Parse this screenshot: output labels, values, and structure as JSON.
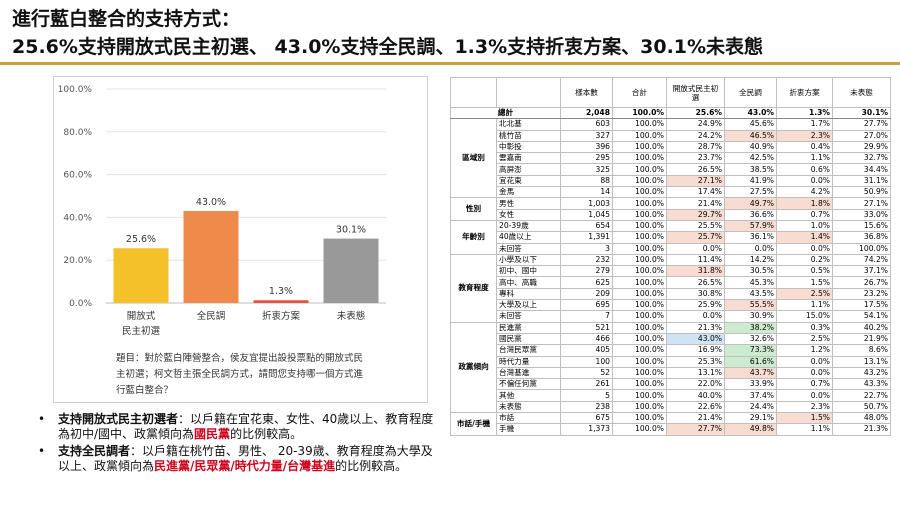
{
  "header": {
    "line1": "進行藍白整合的支持方式：",
    "line2": "25.6%支持開放式民主初選、 43.0%支持全民調、1.3%支持折衷方案、30.1%未表態"
  },
  "chart_data": {
    "type": "bar",
    "categories": [
      "開放式民主初選",
      "全民調",
      "折衷方案",
      "未表態"
    ],
    "category_lines": [
      [
        "開放式",
        "民主初選"
      ],
      [
        "全民調"
      ],
      [
        "折衷方案"
      ],
      [
        "未表態"
      ]
    ],
    "values": [
      25.6,
      43.0,
      1.3,
      30.1
    ],
    "value_labels": [
      "25.6%",
      "43.0%",
      "1.3%",
      "30.1%"
    ],
    "colors": [
      "#f5c12b",
      "#ef8a4a",
      "#e45548",
      "#999999"
    ],
    "ylim": [
      0,
      100
    ],
    "yticks": [
      0,
      20,
      40,
      60,
      80,
      100
    ],
    "ytick_labels": [
      "0.0%",
      "20.0%",
      "40.0%",
      "60.0%",
      "80.0%",
      "100.0%"
    ],
    "grid": true,
    "title": "",
    "xlabel": "",
    "ylabel": ""
  },
  "question": {
    "text": "題目：對於藍白陣營整合，侯友宜提出設投票點的開放式民主初選；柯文哲主張全民調方式，請問您支持哪一個方式進行藍白整合？"
  },
  "notes": [
    {
      "lead": "支持開放式民主初選者",
      "text": "：以戶籍在宜花東、女性、40歲以上、教育程度為初中/國中、政黨傾向為",
      "highlight": "國民黨",
      "tail": "的比例較高。"
    },
    {
      "lead": "支持全民調者",
      "text": "：以戶籍在桃竹苗、男性、 20-39歲、教育程度為大學及以上、政黨傾向為",
      "highlight": "民進黨/民眾黨/時代力量/台灣基進",
      "tail": "的比例較高。"
    }
  ],
  "table": {
    "headers": [
      "樣本數",
      "合計",
      "開放式民主初選",
      "全民調",
      "折衷方案",
      "未表態"
    ],
    "total": {
      "label": "總計",
      "values": [
        "2,048",
        "100.0%",
        "25.6%",
        "43.0%",
        "1.3%",
        "30.1%"
      ]
    },
    "groups": [
      {
        "name": "區域別",
        "rows": [
          {
            "label": "北北基",
            "values": [
              "603",
              "100.0%",
              "24.9%",
              "45.6%",
              "1.7%",
              "27.7%"
            ],
            "hl": [
              null,
              null,
              null,
              null,
              null,
              null
            ]
          },
          {
            "label": "桃竹苗",
            "values": [
              "327",
              "100.0%",
              "24.2%",
              "46.5%",
              "2.3%",
              "27.0%"
            ],
            "hl": [
              null,
              null,
              null,
              "red",
              "red",
              null
            ]
          },
          {
            "label": "中彰投",
            "values": [
              "396",
              "100.0%",
              "28.7%",
              "40.9%",
              "0.4%",
              "29.9%"
            ],
            "hl": [
              null,
              null,
              null,
              null,
              null,
              null
            ]
          },
          {
            "label": "雲嘉南",
            "values": [
              "295",
              "100.0%",
              "23.7%",
              "42.5%",
              "1.1%",
              "32.7%"
            ],
            "hl": [
              null,
              null,
              null,
              null,
              null,
              null
            ]
          },
          {
            "label": "高屏澎",
            "values": [
              "325",
              "100.0%",
              "26.5%",
              "38.5%",
              "0.6%",
              "34.4%"
            ],
            "hl": [
              null,
              null,
              null,
              null,
              null,
              null
            ]
          },
          {
            "label": "宜花東",
            "values": [
              "88",
              "100.0%",
              "27.1%",
              "41.9%",
              "0.0%",
              "31.1%"
            ],
            "hl": [
              null,
              null,
              "red",
              null,
              null,
              null
            ]
          },
          {
            "label": "金馬",
            "values": [
              "14",
              "100.0%",
              "17.4%",
              "27.5%",
              "4.2%",
              "50.9%"
            ],
            "hl": [
              null,
              null,
              null,
              null,
              null,
              null
            ]
          }
        ]
      },
      {
        "name": "性別",
        "rows": [
          {
            "label": "男性",
            "values": [
              "1,003",
              "100.0%",
              "21.4%",
              "49.7%",
              "1.8%",
              "27.1%"
            ],
            "hl": [
              null,
              null,
              null,
              "red",
              "red",
              null
            ]
          },
          {
            "label": "女性",
            "values": [
              "1,045",
              "100.0%",
              "29.7%",
              "36.6%",
              "0.7%",
              "33.0%"
            ],
            "hl": [
              null,
              null,
              "red",
              null,
              null,
              null
            ]
          }
        ]
      },
      {
        "name": "年齡別",
        "rows": [
          {
            "label": "20-39歲",
            "values": [
              "654",
              "100.0%",
              "25.5%",
              "57.9%",
              "1.0%",
              "15.6%"
            ],
            "hl": [
              null,
              null,
              null,
              "red",
              null,
              null
            ]
          },
          {
            "label": "40歲以上",
            "values": [
              "1,391",
              "100.0%",
              "25.7%",
              "36.1%",
              "1.4%",
              "36.8%"
            ],
            "hl": [
              null,
              null,
              "red",
              null,
              "red",
              null
            ]
          },
          {
            "label": "未回答",
            "values": [
              "3",
              "100.0%",
              "0.0%",
              "0.0%",
              "0.0%",
              "100.0%"
            ],
            "hl": [
              null,
              null,
              null,
              null,
              null,
              null
            ]
          }
        ]
      },
      {
        "name": "教育程度",
        "rows": [
          {
            "label": "小學及以下",
            "values": [
              "232",
              "100.0%",
              "11.4%",
              "14.2%",
              "0.2%",
              "74.2%"
            ],
            "hl": [
              null,
              null,
              null,
              null,
              null,
              null
            ]
          },
          {
            "label": "初中、國中",
            "values": [
              "279",
              "100.0%",
              "31.8%",
              "30.5%",
              "0.5%",
              "37.1%"
            ],
            "hl": [
              null,
              null,
              "red",
              null,
              null,
              null
            ]
          },
          {
            "label": "高中、高職",
            "values": [
              "625",
              "100.0%",
              "26.5%",
              "45.3%",
              "1.5%",
              "26.7%"
            ],
            "hl": [
              null,
              null,
              null,
              null,
              null,
              null
            ]
          },
          {
            "label": "專科",
            "values": [
              "209",
              "100.0%",
              "30.8%",
              "43.5%",
              "2.5%",
              "23.2%"
            ],
            "hl": [
              null,
              null,
              null,
              null,
              "red",
              null
            ]
          },
          {
            "label": "大學及以上",
            "values": [
              "695",
              "100.0%",
              "25.9%",
              "55.5%",
              "1.1%",
              "17.5%"
            ],
            "hl": [
              null,
              null,
              null,
              "red",
              null,
              null
            ]
          },
          {
            "label": "未回答",
            "values": [
              "7",
              "100.0%",
              "0.0%",
              "30.9%",
              "15.0%",
              "54.1%"
            ],
            "hl": [
              null,
              null,
              null,
              null,
              null,
              null
            ]
          }
        ]
      },
      {
        "name": "政黨傾向",
        "rows": [
          {
            "label": "民進黨",
            "values": [
              "521",
              "100.0%",
              "21.3%",
              "38.2%",
              "0.3%",
              "40.2%"
            ],
            "hl": [
              null,
              null,
              null,
              "green",
              null,
              null
            ]
          },
          {
            "label": "國民黨",
            "values": [
              "466",
              "100.0%",
              "43.0%",
              "32.6%",
              "2.5%",
              "21.9%"
            ],
            "hl": [
              null,
              null,
              "blue",
              null,
              null,
              null
            ]
          },
          {
            "label": "台灣民眾黨",
            "values": [
              "405",
              "100.0%",
              "16.9%",
              "73.3%",
              "1.2%",
              "8.6%"
            ],
            "hl": [
              null,
              null,
              null,
              "green",
              null,
              null
            ]
          },
          {
            "label": "時代力量",
            "values": [
              "100",
              "100.0%",
              "25.3%",
              "61.6%",
              "0.0%",
              "13.1%"
            ],
            "hl": [
              null,
              null,
              null,
              "green",
              null,
              null
            ]
          },
          {
            "label": "台灣基進",
            "values": [
              "52",
              "100.0%",
              "13.1%",
              "43.7%",
              "0.0%",
              "43.2%"
            ],
            "hl": [
              null,
              null,
              null,
              "red",
              null,
              null
            ]
          },
          {
            "label": "不偏任何黨",
            "values": [
              "261",
              "100.0%",
              "22.0%",
              "33.9%",
              "0.7%",
              "43.3%"
            ],
            "hl": [
              null,
              null,
              null,
              null,
              null,
              null
            ]
          },
          {
            "label": "其他",
            "values": [
              "5",
              "100.0%",
              "40.0%",
              "37.4%",
              "0.0%",
              "22.7%"
            ],
            "hl": [
              null,
              null,
              null,
              null,
              null,
              null
            ]
          },
          {
            "label": "未表態",
            "values": [
              "238",
              "100.0%",
              "22.6%",
              "24.4%",
              "2.3%",
              "50.7%"
            ],
            "hl": [
              null,
              null,
              null,
              null,
              null,
              null
            ]
          }
        ]
      },
      {
        "name": "市話/手機",
        "rows": [
          {
            "label": "市話",
            "values": [
              "675",
              "100.0%",
              "21.4%",
              "29.1%",
              "1.5%",
              "48.0%"
            ],
            "hl": [
              null,
              null,
              null,
              null,
              "red",
              null
            ]
          },
          {
            "label": "手機",
            "values": [
              "1,373",
              "100.0%",
              "27.7%",
              "49.8%",
              "1.1%",
              "21.3%"
            ],
            "hl": [
              null,
              null,
              "red",
              "red",
              null,
              null
            ]
          }
        ]
      }
    ]
  }
}
